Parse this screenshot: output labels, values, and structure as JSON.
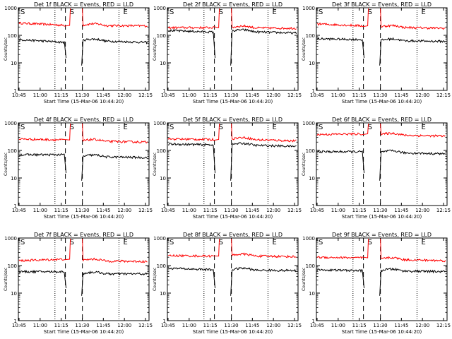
{
  "chart_data": [
    {
      "type": "line",
      "title": "Det 1f BLACK = Events, RED = LLD",
      "xlabel": "Start Time (15-Mar-06 10:44:20)",
      "ylabel": "Counts/sec",
      "x_ticks": [
        "10:45",
        "11:00",
        "11:15",
        "11:30",
        "11:45",
        "12:00",
        "12:15"
      ],
      "y_ticks": [
        "1",
        "10",
        "100",
        "1000"
      ],
      "yscale": "log",
      "ylim": [
        1,
        1000
      ],
      "markers": {
        "start": "S",
        "end": "E"
      },
      "series": [
        {
          "name": "RED = LLD",
          "color": "#ff0000",
          "levels": [
            280,
            230,
            230,
            220
          ]
        },
        {
          "name": "BLACK = Events",
          "color": "#000000",
          "levels": [
            70,
            55,
            65,
            55
          ]
        }
      ]
    },
    {
      "type": "line",
      "title": "Det 2f BLACK = Events, RED = LLD",
      "xlabel": "Start Time (15-Mar-06 10:44:20)",
      "ylabel": "Counts/sec",
      "x_ticks": [
        "10:45",
        "11:00",
        "11:15",
        "11:30",
        "11:45",
        "12:00",
        "12:15"
      ],
      "y_ticks": [
        "1",
        "10",
        "100",
        "1000"
      ],
      "yscale": "log",
      "ylim": [
        1,
        1000
      ],
      "markers": {
        "start": "S",
        "end": "E"
      },
      "series": [
        {
          "name": "RED = LLD",
          "color": "#ff0000",
          "levels": [
            190,
            190,
            190,
            180
          ]
        },
        {
          "name": "BLACK = Events",
          "color": "#000000",
          "levels": [
            150,
            130,
            140,
            120
          ]
        }
      ]
    },
    {
      "type": "line",
      "title": "Det 3f BLACK = Events, RED = LLD",
      "xlabel": "Start Time (15-Mar-06 10:44:20)",
      "ylabel": "Counts/sec",
      "x_ticks": [
        "10:45",
        "11:00",
        "11:15",
        "11:30",
        "11:45",
        "12:00",
        "12:15"
      ],
      "y_ticks": [
        "1",
        "10",
        "100",
        "1000"
      ],
      "yscale": "log",
      "ylim": [
        1,
        1000
      ],
      "markers": {
        "start": "S",
        "end": "E"
      },
      "series": [
        {
          "name": "RED = LLD",
          "color": "#ff0000",
          "levels": [
            260,
            220,
            200,
            180
          ]
        },
        {
          "name": "BLACK = Events",
          "color": "#000000",
          "levels": [
            75,
            70,
            65,
            60
          ]
        }
      ]
    },
    {
      "type": "line",
      "title": "Det 4f BLACK = Events, RED = LLD",
      "xlabel": "Start Time (15-Mar-06 10:44:20)",
      "ylabel": "Counts/sec",
      "x_ticks": [
        "10:45",
        "11:00",
        "11:15",
        "11:30",
        "11:45",
        "12:00",
        "12:15"
      ],
      "y_ticks": [
        "1",
        "10",
        "100",
        "1000"
      ],
      "yscale": "log",
      "ylim": [
        1,
        1000
      ],
      "markers": {
        "start": "S",
        "end": "E"
      },
      "series": [
        {
          "name": "RED = LLD",
          "color": "#ff0000",
          "levels": [
            260,
            240,
            220,
            200
          ]
        },
        {
          "name": "BLACK = Events",
          "color": "#000000",
          "levels": [
            70,
            70,
            60,
            55
          ]
        }
      ]
    },
    {
      "type": "line",
      "title": "Det 5f BLACK = Events, RED = LLD",
      "xlabel": "Start Time (15-Mar-06 10:44:20)",
      "ylabel": "Counts/sec",
      "x_ticks": [
        "10:45",
        "11:00",
        "11:15",
        "11:30",
        "11:45",
        "12:00",
        "12:15"
      ],
      "y_ticks": [
        "1",
        "10",
        "100",
        "1000"
      ],
      "yscale": "log",
      "ylim": [
        1,
        1000
      ],
      "markers": {
        "start": "S",
        "end": "E"
      },
      "series": [
        {
          "name": "RED = LLD",
          "color": "#ff0000",
          "levels": [
            260,
            250,
            260,
            220
          ]
        },
        {
          "name": "BLACK = Events",
          "color": "#000000",
          "levels": [
            170,
            160,
            160,
            140
          ]
        }
      ]
    },
    {
      "type": "line",
      "title": "Det 6f BLACK = Events, RED = LLD",
      "xlabel": "Start Time (15-Mar-06 10:44:20)",
      "ylabel": "Counts/sec",
      "x_ticks": [
        "10:45",
        "11:00",
        "11:15",
        "11:30",
        "11:45",
        "12:00",
        "12:15"
      ],
      "y_ticks": [
        "1",
        "10",
        "100",
        "1000"
      ],
      "yscale": "log",
      "ylim": [
        1,
        1000
      ],
      "markers": {
        "start": "S",
        "end": "E"
      },
      "series": [
        {
          "name": "RED = LLD",
          "color": "#ff0000",
          "levels": [
            380,
            400,
            370,
            330
          ]
        },
        {
          "name": "BLACK = Events",
          "color": "#000000",
          "levels": [
            90,
            90,
            85,
            75
          ]
        }
      ]
    },
    {
      "type": "line",
      "title": "Det 7f BLACK = Events, RED = LLD",
      "xlabel": "Start Time (15-Mar-06 10:44:20)",
      "ylabel": "Counts/sec",
      "x_ticks": [
        "10:45",
        "11:00",
        "11:15",
        "11:30",
        "11:45",
        "12:00",
        "12:15"
      ],
      "y_ticks": [
        "1",
        "10",
        "100",
        "1000"
      ],
      "yscale": "log",
      "ylim": [
        1,
        1000
      ],
      "markers": {
        "start": "S",
        "end": "E"
      },
      "series": [
        {
          "name": "RED = LLD",
          "color": "#ff0000",
          "levels": [
            150,
            170,
            150,
            140
          ]
        },
        {
          "name": "BLACK = Events",
          "color": "#000000",
          "levels": [
            60,
            60,
            50,
            50
          ]
        }
      ]
    },
    {
      "type": "line",
      "title": "Det 8f BLACK = Events, RED = LLD",
      "xlabel": "Start Time (15-Mar-06 10:44:20)",
      "ylabel": "Counts/sec",
      "x_ticks": [
        "10:45",
        "11:00",
        "11:15",
        "11:30",
        "11:45",
        "12:00",
        "12:15"
      ],
      "y_ticks": [
        "1",
        "10",
        "100",
        "1000"
      ],
      "yscale": "log",
      "ylim": [
        1,
        1000
      ],
      "markers": {
        "start": "S",
        "end": "E"
      },
      "series": [
        {
          "name": "RED = LLD",
          "color": "#ff0000",
          "levels": [
            230,
            220,
            230,
            210
          ]
        },
        {
          "name": "BLACK = Events",
          "color": "#000000",
          "levels": [
            80,
            70,
            70,
            65
          ]
        }
      ]
    },
    {
      "type": "line",
      "title": "Det 9f BLACK = Events, RED = LLD",
      "xlabel": "Start Time (15-Mar-06 10:44:20)",
      "ylabel": "Counts/sec",
      "x_ticks": [
        "10:45",
        "11:00",
        "11:15",
        "11:30",
        "11:45",
        "12:00",
        "12:15"
      ],
      "y_ticks": [
        "1",
        "10",
        "100",
        "1000"
      ],
      "yscale": "log",
      "ylim": [
        1,
        1000
      ],
      "markers": {
        "start": "S",
        "end": "E"
      },
      "series": [
        {
          "name": "RED = LLD",
          "color": "#ff0000",
          "levels": [
            200,
            190,
            170,
            150
          ]
        },
        {
          "name": "BLACK = Events",
          "color": "#000000",
          "levels": [
            70,
            65,
            65,
            60
          ]
        }
      ]
    }
  ]
}
